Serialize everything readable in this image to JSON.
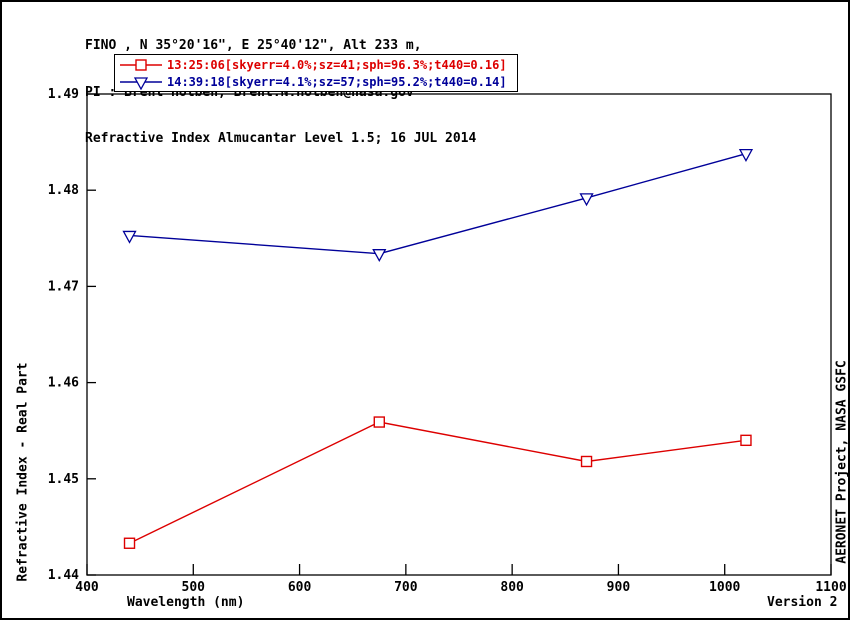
{
  "header": {
    "line1": "FINO , N 35°20'16\", E 25°40'12\", Alt 233 m,",
    "line2": "PI : Brent Holben, Brent.N.Holben@nasa.gov",
    "line3": "Refractive Index Almucantar Level 1.5; 16 JUL 2014"
  },
  "legend": {
    "entries": [
      {
        "label": "13:25:06[skyerr=4.0%;sz=41;sph=96.3%;t440=0.16]",
        "color": "#dd0000",
        "marker": "square"
      },
      {
        "label": "14:39:18[skyerr=4.1%;sz=57;sph=95.2%;t440=0.14]",
        "color": "#000099",
        "marker": "triangle-down"
      }
    ]
  },
  "chart_data": {
    "type": "line",
    "x": [
      440,
      675,
      870,
      1020
    ],
    "series": [
      {
        "name": "13:25:06",
        "color": "#dd0000",
        "marker": "square",
        "values": [
          1.4433,
          1.4559,
          1.4518,
          1.454
        ]
      },
      {
        "name": "14:39:18",
        "color": "#000099",
        "marker": "triangle-down",
        "values": [
          1.4753,
          1.4734,
          1.4792,
          1.4838
        ]
      }
    ],
    "title": "Refractive Index Almucantar Level 1.5; 16 JUL 2014",
    "xlabel": "Wavelength (nm)",
    "ylabel": "Refractive Index - Real Part",
    "xlim": [
      400,
      1100
    ],
    "ylim": [
      1.44,
      1.49
    ],
    "xticks": [
      400,
      500,
      600,
      700,
      800,
      900,
      1000,
      1100
    ],
    "yticks": [
      1.44,
      1.45,
      1.46,
      1.47,
      1.48,
      1.49
    ],
    "grid": false,
    "legend_position": "top"
  },
  "footer": {
    "right_vertical": "AERONET Project, NASA GSFC",
    "version": "Version 2"
  },
  "colors": {
    "axis": "#000000",
    "background": "#ffffff"
  }
}
